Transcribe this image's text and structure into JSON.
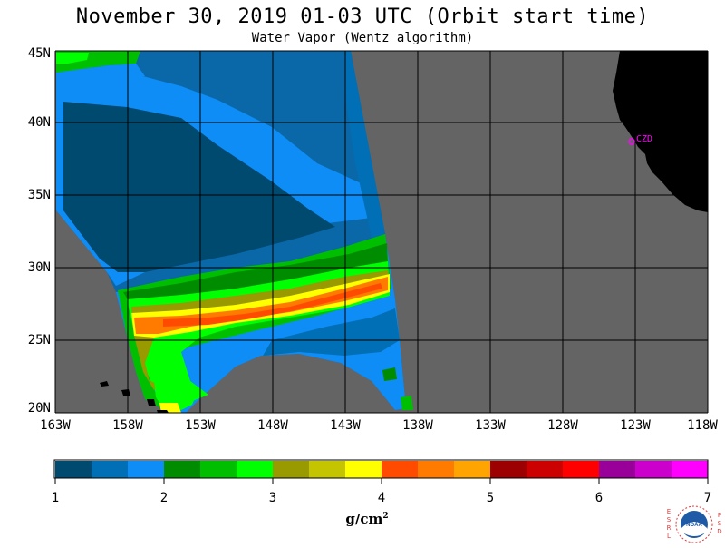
{
  "title": "November 30, 2019  01-03 UTC  (Orbit start time)",
  "subtitle": "Water Vapor (Wentz algorithm)",
  "map": {
    "lat_labels": [
      "45N",
      "40N",
      "35N",
      "30N",
      "25N",
      "20N"
    ],
    "lon_labels": [
      "163W",
      "158W",
      "153W",
      "148W",
      "143W",
      "138W",
      "133W",
      "128W",
      "123W",
      "118W"
    ],
    "station_label": "CZD",
    "colors": {
      "background_no_data": "#646464",
      "land": "#000000",
      "grid": "#000000",
      "station": "#ff00ff"
    }
  },
  "colorbar": {
    "units": "g/cm",
    "units_exp": "2",
    "range": [
      1,
      7
    ],
    "tick_labels": [
      "1",
      "2",
      "3",
      "4",
      "5",
      "6",
      "7"
    ],
    "colors": [
      "#004a70",
      "#006fb5",
      "#0f8df7",
      "#008c00",
      "#00bf00",
      "#00ff00",
      "#999900",
      "#c4c400",
      "#ffff00",
      "#ff4b00",
      "#ff7b00",
      "#ffa400",
      "#9c0000",
      "#cc0000",
      "#ff0000",
      "#990099",
      "#cc00cc",
      "#ff00ff"
    ]
  },
  "logo": {
    "left_letters": "ESRL",
    "right_letters": "PSD",
    "center_text": "NOAA"
  }
}
